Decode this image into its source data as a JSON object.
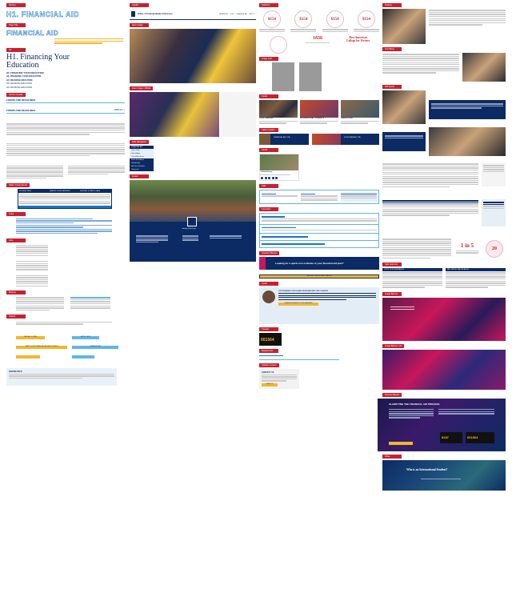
{
  "col1": {
    "tag_top": "Section",
    "h1_outline": "H1. FINANCIAL AID",
    "tag_title": "Page Title",
    "page_title_outline": "FINANCIAL AID",
    "tag_h1": "H1",
    "h1_serif": "H1. Financing Your Education",
    "h_levels": [
      "H2. FINANCING YOUR EDUCATION",
      "H3. FINANCING YOUR EDUCATION",
      "H4. FINANCING EDUCATION",
      "H5. FINANCING EDUCATION",
      "H6. FINANCING EDUCATION"
    ],
    "tag_forms": "Section Header",
    "forms_a": "FORMS AND DEADLINES",
    "forms_b": "FORMS AND DEADLINES",
    "view_all": "VIEW ALL »",
    "tag_table": "Table / Financial Aid",
    "table_head": [
      "STUDENT PAYS",
      "GRANTS / SCHOLARSHIPS",
      "FEDERAL & STATE LOANS"
    ],
    "tag_links": "Links",
    "tag_lists": "Lists",
    "tag_buttons": "Buttons",
    "btn_a": "VIEW ALL FORMS",
    "btn_b": "START YOUR FINANCIAL AID APPLICATION",
    "btn_c": "APPLY NOW",
    "btn_d": "LEARN MORE",
    "tag_callout": "Callout",
    "callout_title": "ONLINE INFO"
  },
  "col2": {
    "tag_header": "Header",
    "brand": "Office of Undergraduate Admission",
    "nav": [
      "ADMISSION",
      "VISIT",
      "FINANCIAL AID",
      "APPLY"
    ],
    "tag_hero": "Hero Image",
    "tag_hero2": "Hero Image / Mobile",
    "tag_sidenav": "Side Navigation",
    "side_items": [
      "FINANCIAL AID",
      "Types of Aid",
      "How to Apply",
      "Cost of Attendance",
      "Forms & Deadlines",
      "Scholarships",
      "Net Price Calculator",
      "Contact Us"
    ],
    "tag_footer": "Footer",
    "footer_name": "Emory University"
  },
  "col3": {
    "tag_stats": "Statistics",
    "stats": [
      "$154",
      "$154",
      "$154",
      "$154"
    ],
    "stat_big": "1836",
    "stat_text": "Best American College for Writers",
    "tag_images": "Image Grid",
    "tag_cards": "Cards",
    "cards": [
      "STUDY ABROAD",
      "INTERNATIONAL STUDENTS",
      "CAMPUS LIFE"
    ],
    "tag_ctas": "Calls to Action",
    "cta_a": "FINANCIAL AID CTA",
    "cta_b": "SCHOLARSHIP CTA",
    "tag_social": "Social",
    "social_name": "Follow Emory",
    "tag_tabs": "Tabs",
    "tag_accordion": "Accordion",
    "tag_question": "Question Banner",
    "question": "Looking for a quick cost estimate of your financial aid plan?",
    "question_btn": "USE NET PRICE CALCULATOR",
    "tag_quote": "Quote",
    "quote_title": "OUTSTANDING SCHOLARS FROM AROUND THE COUNTRY",
    "quote_btn": "LEARN MORE ABOUT SCHOLARSHIPS",
    "tag_counter": "Counter",
    "counter": "001564",
    "tag_breadcrumb": "Breadcrumb",
    "tag_sidebar": "Sidebar Contact",
    "contact_title": "CONTACT US",
    "contact_btn": "EMAIL US"
  },
  "col4": {
    "tag_feature": "Feature",
    "tag_text": "Text Block",
    "tag_quote_pull": "Pull Quote",
    "pull_a": "1 in 5",
    "pull_b": "20",
    "tag_split": "Split Columns",
    "split_a": "COST OF ATTENDANCE",
    "split_b": "NET PRICE CALCULATOR",
    "tag_banner1": "Image Banner",
    "tag_banner2": "Image Banner / Alt",
    "tag_process": "Process Banner",
    "process_title": "CLARIFYING THE FINANCIAL AID PROCESS",
    "process_a": "$187",
    "process_b": "001564",
    "tag_intl": "Video",
    "intl": "Who is an International Student?"
  },
  "colors": {
    "red": "#c8202f",
    "navy": "#0c2b64",
    "blue": "#1a74c7",
    "yellow": "#f3b72a",
    "sky": "#5fb6e6",
    "magenta": "#c8175a"
  }
}
